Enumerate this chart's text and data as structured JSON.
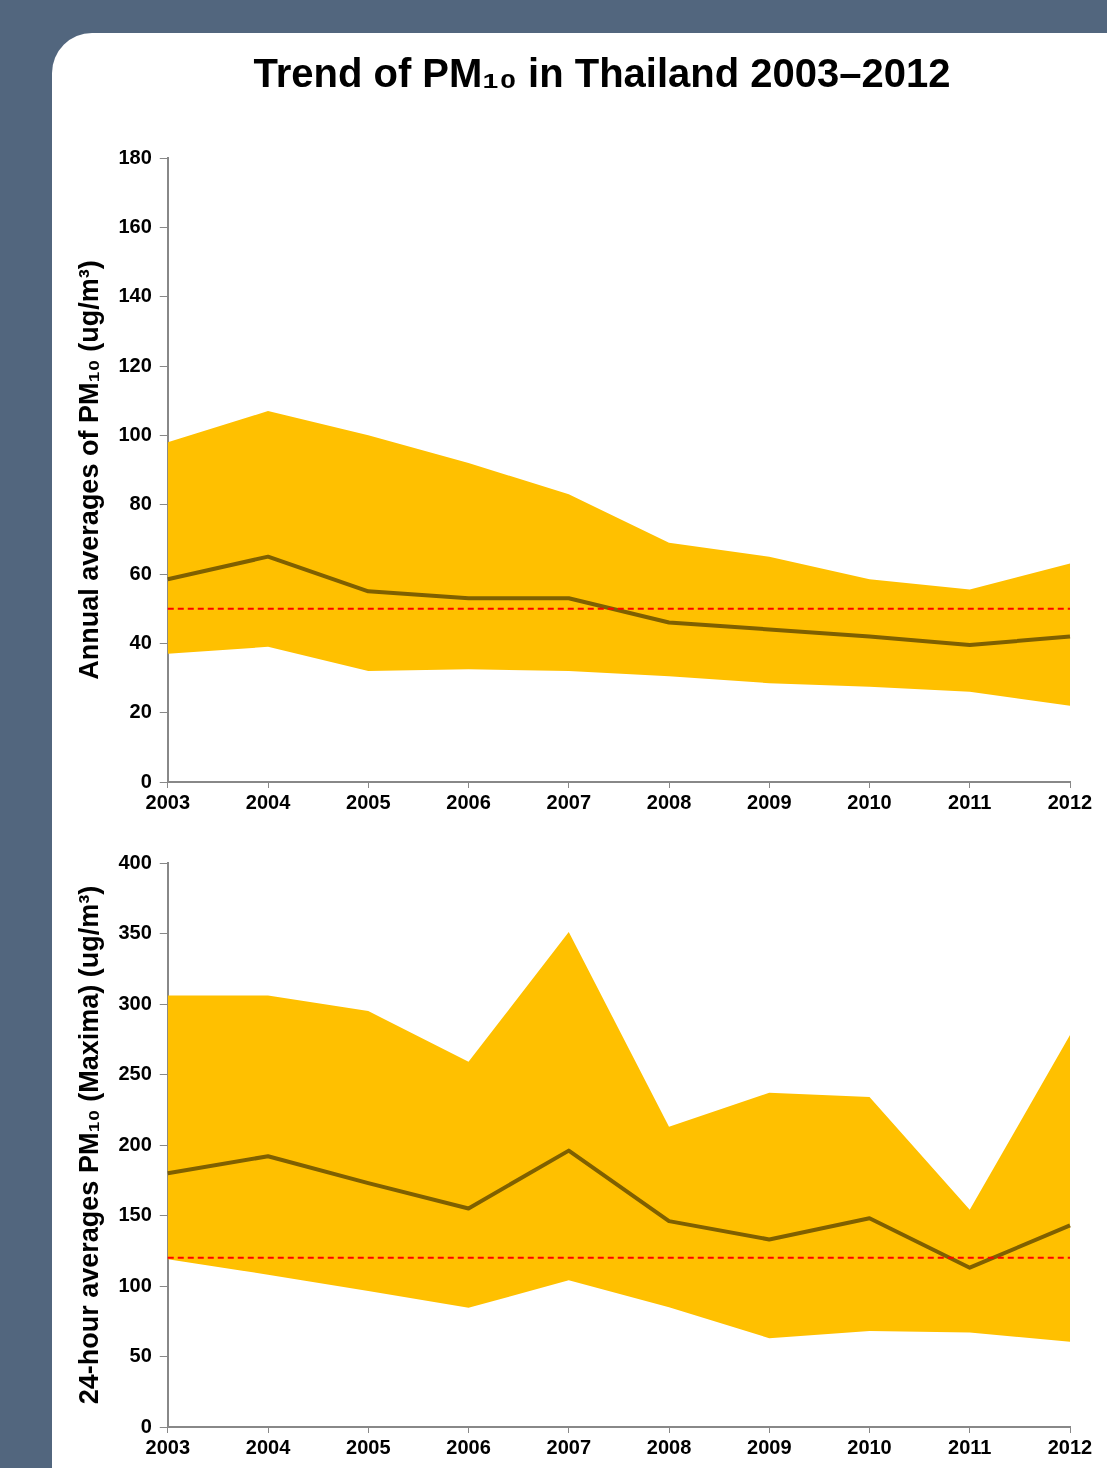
{
  "chart_data": [
    {
      "type": "line",
      "title": "Trend of PM₁₀ in Thailand 2003–2012",
      "ylabel": "Annual averages of PM₁₀ (ug/m³)",
      "categories": [
        "2003",
        "2004",
        "2005",
        "2006",
        "2007",
        "2008",
        "2009",
        "2010",
        "2011",
        "2012"
      ],
      "color": "#ffc000",
      "series": [
        {
          "color": "#7f6000",
          "values": [
            58.5,
            65,
            55,
            53,
            53,
            46,
            44,
            42,
            39.5,
            42
          ],
          "lower": [
            37,
            39,
            32,
            32.5,
            32,
            30.5,
            28.5,
            27.5,
            26,
            22
          ],
          "upper": [
            98,
            107,
            100,
            92,
            83,
            69,
            65,
            58.5,
            55.5,
            63
          ]
        }
      ],
      "ylim": [
        0,
        180
      ],
      "yticks": [
        0,
        20,
        40,
        60,
        80,
        100,
        120,
        140,
        160,
        180
      ],
      "ref_lines": [
        {
          "axis": "y",
          "value": 50,
          "color": "#ff0000",
          "line_style": "dashed"
        }
      ],
      "grid": false,
      "legend": false,
      "marker": "none"
    },
    {
      "type": "line",
      "ylabel": "24-hour averages PM₁₀ (Maxima) (ug/m³)",
      "categories": [
        "2003",
        "2004",
        "2005",
        "2006",
        "2007",
        "2008",
        "2009",
        "2010",
        "2011",
        "2012"
      ],
      "color": "#ffc000",
      "series": [
        {
          "color": "#7f6000",
          "values": [
            180,
            192,
            173,
            155,
            196,
            146,
            133,
            148,
            113,
            143
          ],
          "lower": [
            119,
            108,
            96.5,
            84.5,
            104,
            85,
            63,
            68,
            67,
            60.5
          ],
          "upper": [
            306,
            306,
            295,
            259,
            351,
            213,
            237,
            234,
            154,
            278
          ]
        }
      ],
      "ylim": [
        0,
        400
      ],
      "yticks": [
        0,
        50,
        100,
        150,
        200,
        250,
        300,
        350,
        400
      ],
      "ref_lines": [
        {
          "axis": "y",
          "value": 120,
          "color": "#ff0000",
          "line_style": "dashed"
        }
      ],
      "grid": false,
      "legend": false,
      "marker": "none"
    }
  ]
}
